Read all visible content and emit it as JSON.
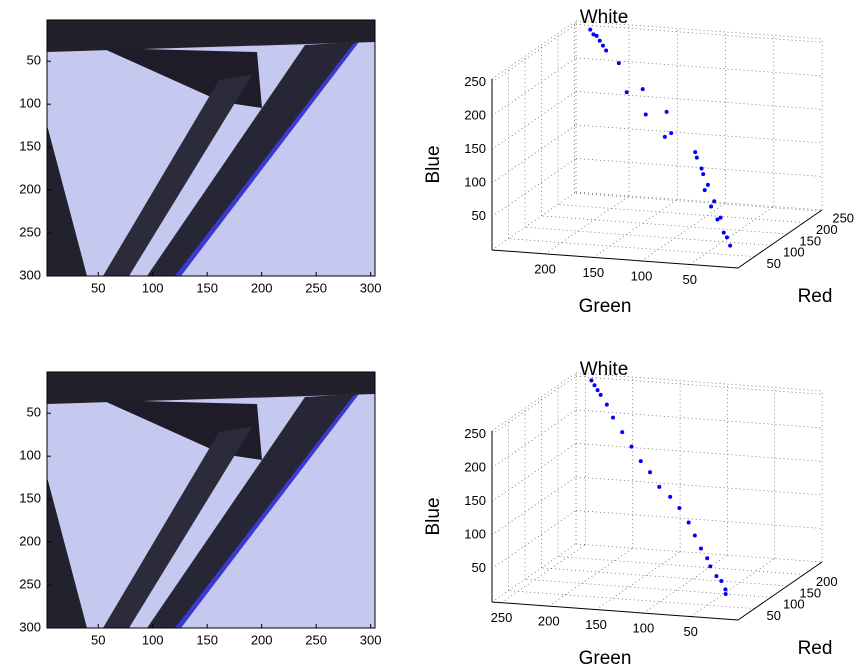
{
  "chart_data": [
    {
      "type": "image",
      "xlim": [
        3,
        304
      ],
      "ylim": [
        2,
        300
      ],
      "xticks": [
        50,
        100,
        150,
        200,
        250,
        300
      ],
      "yticks": [
        50,
        100,
        150,
        200,
        250,
        300
      ]
    },
    {
      "type": "scatter3d",
      "title": "White",
      "xlabel": "Red",
      "ylabel": "Green",
      "zlabel": "Blue",
      "xlim": [
        0,
        255
      ],
      "ylim": [
        0,
        255
      ],
      "zlim": [
        0,
        255
      ],
      "xticks": [
        50,
        100,
        150,
        200,
        250
      ],
      "yticks": [
        50,
        100,
        150,
        200
      ],
      "zticks": [
        50,
        100,
        150,
        200,
        250
      ],
      "series": [
        {
          "color": "#0000ff",
          "x": [
            20,
            30,
            25,
            40,
            35,
            50,
            45,
            60,
            55,
            70,
            65,
            80,
            75,
            120,
            150,
            180,
            200,
            210,
            220,
            205,
            215,
            225,
            100,
            130,
            90,
            160
          ],
          "y": [
            15,
            25,
            20,
            35,
            30,
            45,
            40,
            55,
            50,
            60,
            60,
            70,
            70,
            115,
            150,
            185,
            205,
            215,
            225,
            210,
            220,
            230,
            110,
            140,
            100,
            170
          ],
          "z": [
            25,
            40,
            35,
            55,
            60,
            70,
            80,
            90,
            100,
            110,
            120,
            130,
            140,
            180,
            200,
            225,
            235,
            245,
            250,
            240,
            250,
            255,
            150,
            170,
            160,
            190
          ]
        }
      ]
    },
    {
      "type": "image",
      "xlim": [
        3,
        304
      ],
      "ylim": [
        2,
        300
      ],
      "xticks": [
        50,
        100,
        150,
        200,
        250,
        300
      ],
      "yticks": [
        50,
        100,
        150,
        200,
        250,
        300
      ]
    },
    {
      "type": "scatter3d",
      "title": "White",
      "xlabel": "Red",
      "ylabel": "Green",
      "zlabel": "Blue",
      "xlim": [
        0,
        255
      ],
      "ylim": [
        0,
        260
      ],
      "zlim": [
        0,
        255
      ],
      "xticks": [
        50,
        100,
        150,
        200
      ],
      "yticks": [
        50,
        100,
        150,
        200,
        250
      ],
      "zticks": [
        50,
        100,
        150,
        200,
        250
      ],
      "series": [
        {
          "color": "#0000ff",
          "x": [
            20,
            25,
            30,
            35,
            45,
            50,
            60,
            70,
            80,
            95,
            110,
            120,
            135,
            150,
            165,
            180,
            195,
            205,
            215,
            220,
            225,
            230
          ],
          "y": [
            20,
            22,
            28,
            35,
            45,
            50,
            60,
            70,
            80,
            95,
            110,
            125,
            140,
            155,
            170,
            185,
            200,
            210,
            220,
            225,
            230,
            235
          ],
          "z": [
            30,
            35,
            45,
            50,
            60,
            70,
            80,
            95,
            110,
            125,
            135,
            145,
            160,
            170,
            185,
            200,
            215,
            230,
            240,
            245,
            250,
            255
          ]
        }
      ]
    }
  ]
}
